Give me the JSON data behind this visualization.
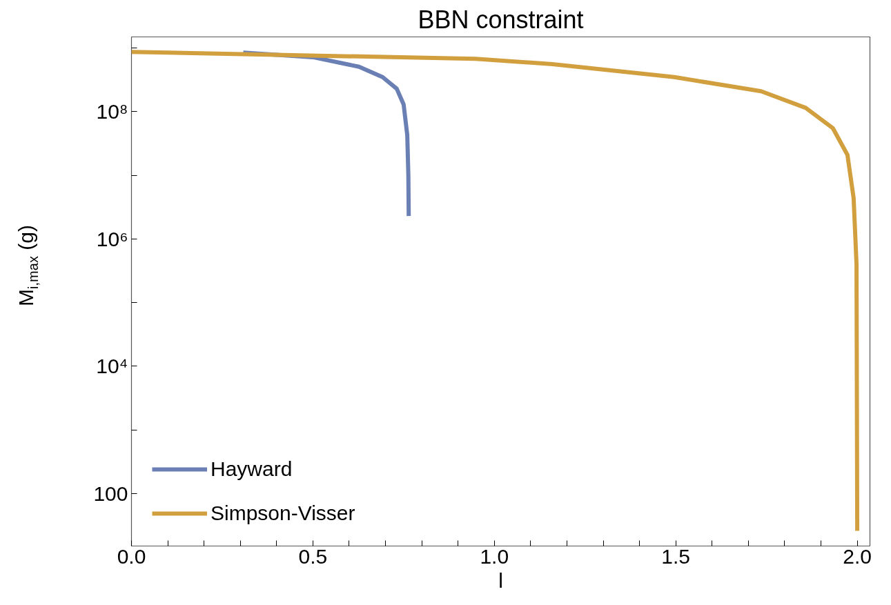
{
  "chart_data": {
    "type": "line",
    "title": "BBN constraint",
    "xlabel": "l",
    "ylabel": "M$_{i,max}$ (g)",
    "log": "y",
    "grid": false,
    "legend": "bottom left",
    "marker": "none",
    "line_style": "solid",
    "xlim": [
      0,
      2.035
    ],
    "ylim": [
      15,
      1500000000.0
    ],
    "xticks": [
      {
        "value": 0,
        "label": "0.0"
      },
      {
        "value": 0.1,
        "label": null
      },
      {
        "value": 0.2,
        "label": null
      },
      {
        "value": 0.3,
        "label": null
      },
      {
        "value": 0.4,
        "label": null
      },
      {
        "value": 0.5,
        "label": "0.5"
      },
      {
        "value": 0.6,
        "label": null
      },
      {
        "value": 0.7,
        "label": null
      },
      {
        "value": 0.8,
        "label": null
      },
      {
        "value": 0.9,
        "label": null
      },
      {
        "value": 1.0,
        "label": "1.0"
      },
      {
        "value": 1.1,
        "label": null
      },
      {
        "value": 1.2,
        "label": null
      },
      {
        "value": 1.3,
        "label": null
      },
      {
        "value": 1.4,
        "label": null
      },
      {
        "value": 1.5,
        "label": "1.5"
      },
      {
        "value": 1.6,
        "label": null
      },
      {
        "value": 1.7,
        "label": null
      },
      {
        "value": 1.8,
        "label": null
      },
      {
        "value": 1.9,
        "label": null
      },
      {
        "value": 2.0,
        "label": "2.0"
      }
    ],
    "yticks": [
      100,
      {
        "value": 1000,
        "label": null
      },
      {
        "value": 10000,
        "label": "10⁴"
      },
      {
        "value": 100000,
        "label": null
      },
      {
        "value": 1000000,
        "label": "10⁶"
      },
      {
        "value": 10000000,
        "label": null
      },
      {
        "value": 100000000,
        "label": "10⁸"
      },
      {
        "value": 1000000000,
        "label": null
      }
    ],
    "series": [
      {
        "name": "Hayward",
        "color": "#6a7fb3",
        "x": [
          0.308,
          0.5,
          0.627,
          0.692,
          0.731,
          0.75,
          0.76,
          0.763,
          0.764
        ],
        "values": [
          850000000.0,
          720000000.0,
          510000000.0,
          350000000.0,
          230000000.0,
          130000000.0,
          43000000.0,
          10000000.0,
          2300000.0
        ]
      },
      {
        "name": "Simpson-Visser",
        "color": "#d29f3f",
        "x": [
          0,
          0.948,
          1.16,
          1.496,
          1.735,
          1.858,
          1.933,
          1.973,
          1.99,
          1.998,
          2.0
        ],
        "values": [
          870000000.0,
          680000000.0,
          560000000.0,
          350000000.0,
          210000000.0,
          115000000.0,
          55000000.0,
          21000000.0,
          4400000.0,
          400000.0,
          26
        ]
      }
    ]
  }
}
